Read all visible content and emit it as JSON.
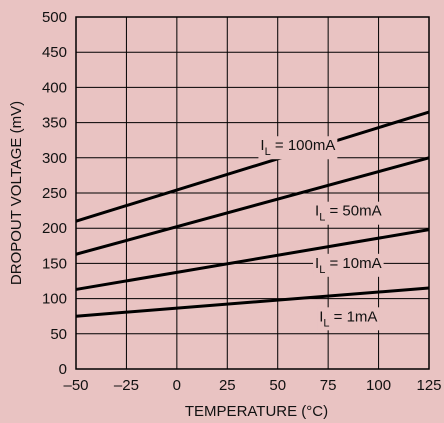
{
  "chart_data": {
    "type": "line",
    "title": "",
    "xlabel": "TEMPERATURE (°C)",
    "ylabel": "DROPOUT VOLTAGE (mV)",
    "xlim": [
      -50,
      125
    ],
    "ylim": [
      0,
      500
    ],
    "xticks": [
      -50,
      -25,
      0,
      25,
      50,
      75,
      100,
      125
    ],
    "yticks": [
      0,
      50,
      100,
      150,
      200,
      250,
      300,
      350,
      400,
      450,
      500
    ],
    "xtick_labels": [
      "–50",
      "–25",
      "0",
      "25",
      "50",
      "75",
      "100",
      "125"
    ],
    "grid": true,
    "legend": "inline labels",
    "series": [
      {
        "name": "I_L = 100mA",
        "label_main": "I",
        "label_sub": "L",
        "label_rest": " = 100mA",
        "x": [
          -50,
          125
        ],
        "y": [
          210,
          365
        ],
        "label_at": [
          60,
          315
        ]
      },
      {
        "name": "I_L = 50mA",
        "label_main": "I",
        "label_sub": "L",
        "label_rest": " = 50mA",
        "x": [
          -50,
          125
        ],
        "y": [
          163,
          300
        ],
        "label_at": [
          85,
          222
        ]
      },
      {
        "name": "I_L = 10mA",
        "label_main": "I",
        "label_sub": "L",
        "label_rest": " = 10mA",
        "x": [
          -50,
          125
        ],
        "y": [
          113,
          198
        ],
        "label_at": [
          85,
          148
        ]
      },
      {
        "name": "I_L = 1mA",
        "label_main": "I",
        "label_sub": "L",
        "label_rest": " = 1mA",
        "x": [
          -50,
          125
        ],
        "y": [
          75,
          115
        ],
        "label_at": [
          85,
          72
        ]
      }
    ]
  },
  "colors": {
    "background": "#e9c3c2",
    "line": "#000000"
  }
}
